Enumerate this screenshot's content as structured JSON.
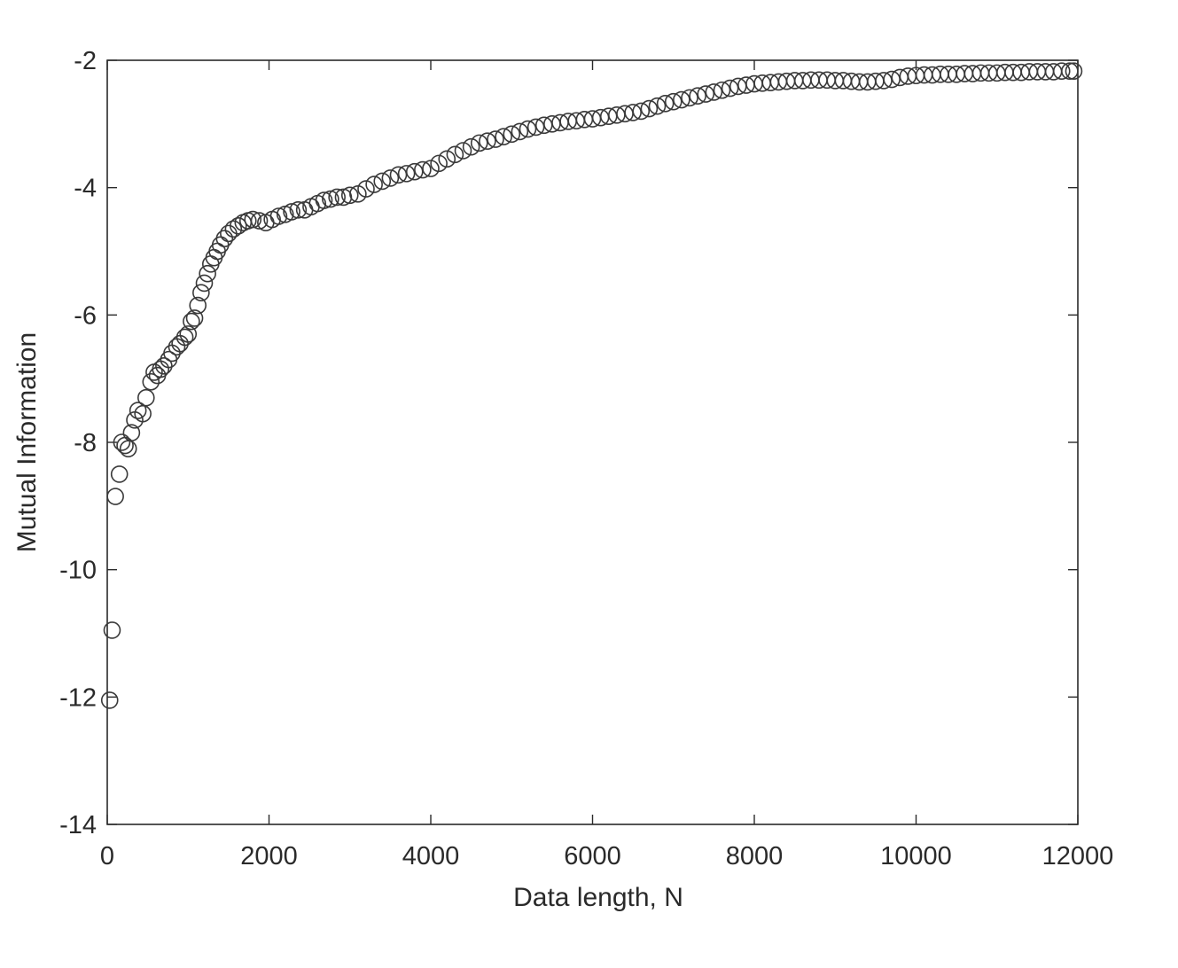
{
  "chart_data": {
    "type": "scatter",
    "title": "",
    "xlabel": "Data length, N",
    "ylabel": "Mutual Information",
    "xlim": [
      0,
      12000
    ],
    "ylim": [
      -14,
      -2
    ],
    "x_ticks": [
      0,
      2000,
      4000,
      6000,
      8000,
      10000,
      12000
    ],
    "x_tick_labels": [
      "0",
      "2000",
      "4000",
      "6000",
      "8000",
      "10000",
      "12000"
    ],
    "y_ticks": [
      -14,
      -12,
      -10,
      -8,
      -6,
      -4,
      -2
    ],
    "y_tick_labels": [
      "-14",
      "-12",
      "-10",
      "-8",
      "-6",
      "-4",
      "-2"
    ],
    "grid": false,
    "legend": "none",
    "marker": "open-circle",
    "marker_color": "#3a3a3a",
    "series": [
      {
        "points": [
          [
            30,
            -12.05
          ],
          [
            60,
            -10.95
          ],
          [
            100,
            -8.85
          ],
          [
            150,
            -8.5
          ],
          [
            180,
            -8.0
          ],
          [
            220,
            -8.05
          ],
          [
            260,
            -8.1
          ],
          [
            300,
            -7.85
          ],
          [
            340,
            -7.65
          ],
          [
            380,
            -7.5
          ],
          [
            440,
            -7.55
          ],
          [
            480,
            -7.3
          ],
          [
            540,
            -7.05
          ],
          [
            580,
            -6.9
          ],
          [
            620,
            -6.95
          ],
          [
            660,
            -6.85
          ],
          [
            700,
            -6.8
          ],
          [
            760,
            -6.7
          ],
          [
            800,
            -6.6
          ],
          [
            860,
            -6.5
          ],
          [
            900,
            -6.45
          ],
          [
            960,
            -6.35
          ],
          [
            1000,
            -6.3
          ],
          [
            1040,
            -6.1
          ],
          [
            1080,
            -6.05
          ],
          [
            1120,
            -5.85
          ],
          [
            1160,
            -5.65
          ],
          [
            1200,
            -5.5
          ],
          [
            1240,
            -5.35
          ],
          [
            1280,
            -5.2
          ],
          [
            1320,
            -5.1
          ],
          [
            1360,
            -5.0
          ],
          [
            1400,
            -4.9
          ],
          [
            1450,
            -4.8
          ],
          [
            1500,
            -4.72
          ],
          [
            1560,
            -4.65
          ],
          [
            1620,
            -4.6
          ],
          [
            1680,
            -4.55
          ],
          [
            1740,
            -4.52
          ],
          [
            1800,
            -4.5
          ],
          [
            1880,
            -4.52
          ],
          [
            1960,
            -4.55
          ],
          [
            2040,
            -4.5
          ],
          [
            2120,
            -4.45
          ],
          [
            2200,
            -4.42
          ],
          [
            2280,
            -4.38
          ],
          [
            2360,
            -4.35
          ],
          [
            2440,
            -4.35
          ],
          [
            2520,
            -4.3
          ],
          [
            2600,
            -4.25
          ],
          [
            2680,
            -4.2
          ],
          [
            2760,
            -4.18
          ],
          [
            2840,
            -4.15
          ],
          [
            2920,
            -4.15
          ],
          [
            3000,
            -4.12
          ],
          [
            3100,
            -4.1
          ],
          [
            3200,
            -4.02
          ],
          [
            3300,
            -3.95
          ],
          [
            3400,
            -3.9
          ],
          [
            3500,
            -3.85
          ],
          [
            3600,
            -3.8
          ],
          [
            3700,
            -3.78
          ],
          [
            3800,
            -3.75
          ],
          [
            3900,
            -3.72
          ],
          [
            4000,
            -3.7
          ],
          [
            4100,
            -3.62
          ],
          [
            4200,
            -3.55
          ],
          [
            4300,
            -3.48
          ],
          [
            4400,
            -3.42
          ],
          [
            4500,
            -3.36
          ],
          [
            4600,
            -3.3
          ],
          [
            4700,
            -3.27
          ],
          [
            4800,
            -3.24
          ],
          [
            4900,
            -3.2
          ],
          [
            5000,
            -3.16
          ],
          [
            5100,
            -3.12
          ],
          [
            5200,
            -3.08
          ],
          [
            5300,
            -3.05
          ],
          [
            5400,
            -3.02
          ],
          [
            5500,
            -3.0
          ],
          [
            5600,
            -2.98
          ],
          [
            5700,
            -2.96
          ],
          [
            5800,
            -2.95
          ],
          [
            5900,
            -2.93
          ],
          [
            6000,
            -2.92
          ],
          [
            6100,
            -2.9
          ],
          [
            6200,
            -2.88
          ],
          [
            6300,
            -2.86
          ],
          [
            6400,
            -2.84
          ],
          [
            6500,
            -2.82
          ],
          [
            6600,
            -2.8
          ],
          [
            6700,
            -2.76
          ],
          [
            6800,
            -2.72
          ],
          [
            6900,
            -2.68
          ],
          [
            7000,
            -2.65
          ],
          [
            7100,
            -2.62
          ],
          [
            7200,
            -2.59
          ],
          [
            7300,
            -2.56
          ],
          [
            7400,
            -2.53
          ],
          [
            7500,
            -2.5
          ],
          [
            7600,
            -2.47
          ],
          [
            7700,
            -2.44
          ],
          [
            7800,
            -2.41
          ],
          [
            7900,
            -2.39
          ],
          [
            8000,
            -2.37
          ],
          [
            8100,
            -2.36
          ],
          [
            8200,
            -2.35
          ],
          [
            8300,
            -2.34
          ],
          [
            8400,
            -2.33
          ],
          [
            8500,
            -2.32
          ],
          [
            8600,
            -2.32
          ],
          [
            8700,
            -2.31
          ],
          [
            8800,
            -2.31
          ],
          [
            8900,
            -2.31
          ],
          [
            9000,
            -2.32
          ],
          [
            9100,
            -2.32
          ],
          [
            9200,
            -2.33
          ],
          [
            9300,
            -2.34
          ],
          [
            9400,
            -2.34
          ],
          [
            9500,
            -2.33
          ],
          [
            9600,
            -2.32
          ],
          [
            9700,
            -2.3
          ],
          [
            9800,
            -2.27
          ],
          [
            9900,
            -2.25
          ],
          [
            10000,
            -2.24
          ],
          [
            10100,
            -2.23
          ],
          [
            10200,
            -2.23
          ],
          [
            10300,
            -2.22
          ],
          [
            10400,
            -2.22
          ],
          [
            10500,
            -2.22
          ],
          [
            10600,
            -2.21
          ],
          [
            10700,
            -2.21
          ],
          [
            10800,
            -2.2
          ],
          [
            10900,
            -2.2
          ],
          [
            11000,
            -2.2
          ],
          [
            11100,
            -2.19
          ],
          [
            11200,
            -2.19
          ],
          [
            11300,
            -2.19
          ],
          [
            11400,
            -2.18
          ],
          [
            11500,
            -2.18
          ],
          [
            11600,
            -2.18
          ],
          [
            11700,
            -2.18
          ],
          [
            11800,
            -2.17
          ],
          [
            11900,
            -2.17
          ],
          [
            11950,
            -2.17
          ]
        ]
      }
    ]
  }
}
